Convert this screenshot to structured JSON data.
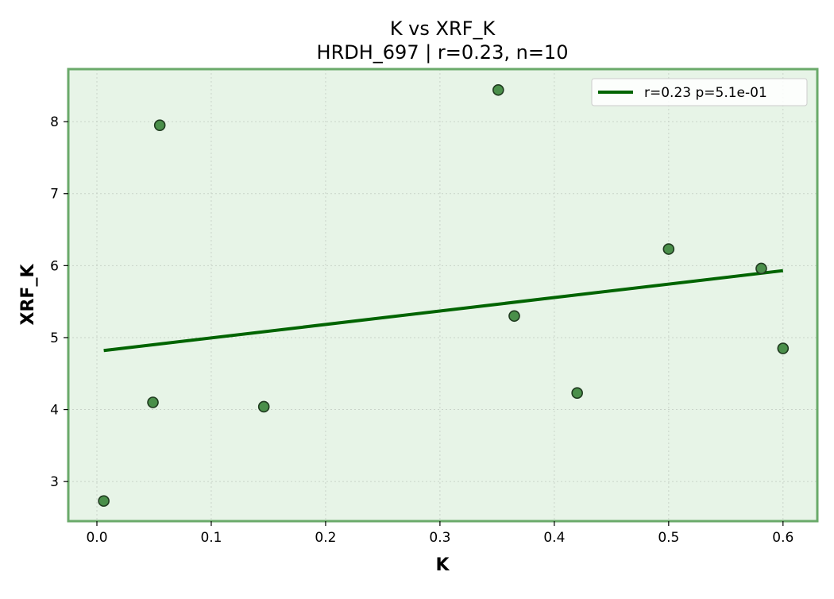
{
  "chart_data": {
    "type": "scatter",
    "title": "K vs XRF_K",
    "subtitle": "HRDH_697 | r=0.23, n=10",
    "xlabel": "K",
    "ylabel": "XRF_K",
    "xlim": [
      -0.025,
      0.63
    ],
    "ylim": [
      2.45,
      8.73
    ],
    "xticks": [
      0.0,
      0.1,
      0.2,
      0.3,
      0.4,
      0.5,
      0.6
    ],
    "xtick_labels": [
      "0.0",
      "0.1",
      "0.2",
      "0.3",
      "0.4",
      "0.5",
      "0.6"
    ],
    "yticks": [
      3,
      4,
      5,
      6,
      7,
      8
    ],
    "ytick_labels": [
      "3",
      "4",
      "5",
      "6",
      "7",
      "8"
    ],
    "grid": true,
    "legend_position": "top-right",
    "points": [
      {
        "x": 0.006,
        "y": 2.73
      },
      {
        "x": 0.049,
        "y": 4.1
      },
      {
        "x": 0.055,
        "y": 7.95
      },
      {
        "x": 0.146,
        "y": 4.04
      },
      {
        "x": 0.351,
        "y": 8.44
      },
      {
        "x": 0.365,
        "y": 5.3
      },
      {
        "x": 0.42,
        "y": 4.23
      },
      {
        "x": 0.5,
        "y": 6.23
      },
      {
        "x": 0.581,
        "y": 5.96
      },
      {
        "x": 0.6,
        "y": 4.85
      }
    ],
    "fit_line": {
      "label": "r=0.23  p=5.1e-01",
      "x": [
        0.006,
        0.6
      ],
      "y": [
        4.82,
        5.93
      ]
    },
    "colors": {
      "point_fill": "#4a8f4a",
      "point_edge": "#1f3a1f",
      "line": "#006400",
      "plot_background": "#e7f4e7",
      "plot_border": "#6aaa6a",
      "grid": "#c9d3c9"
    }
  }
}
